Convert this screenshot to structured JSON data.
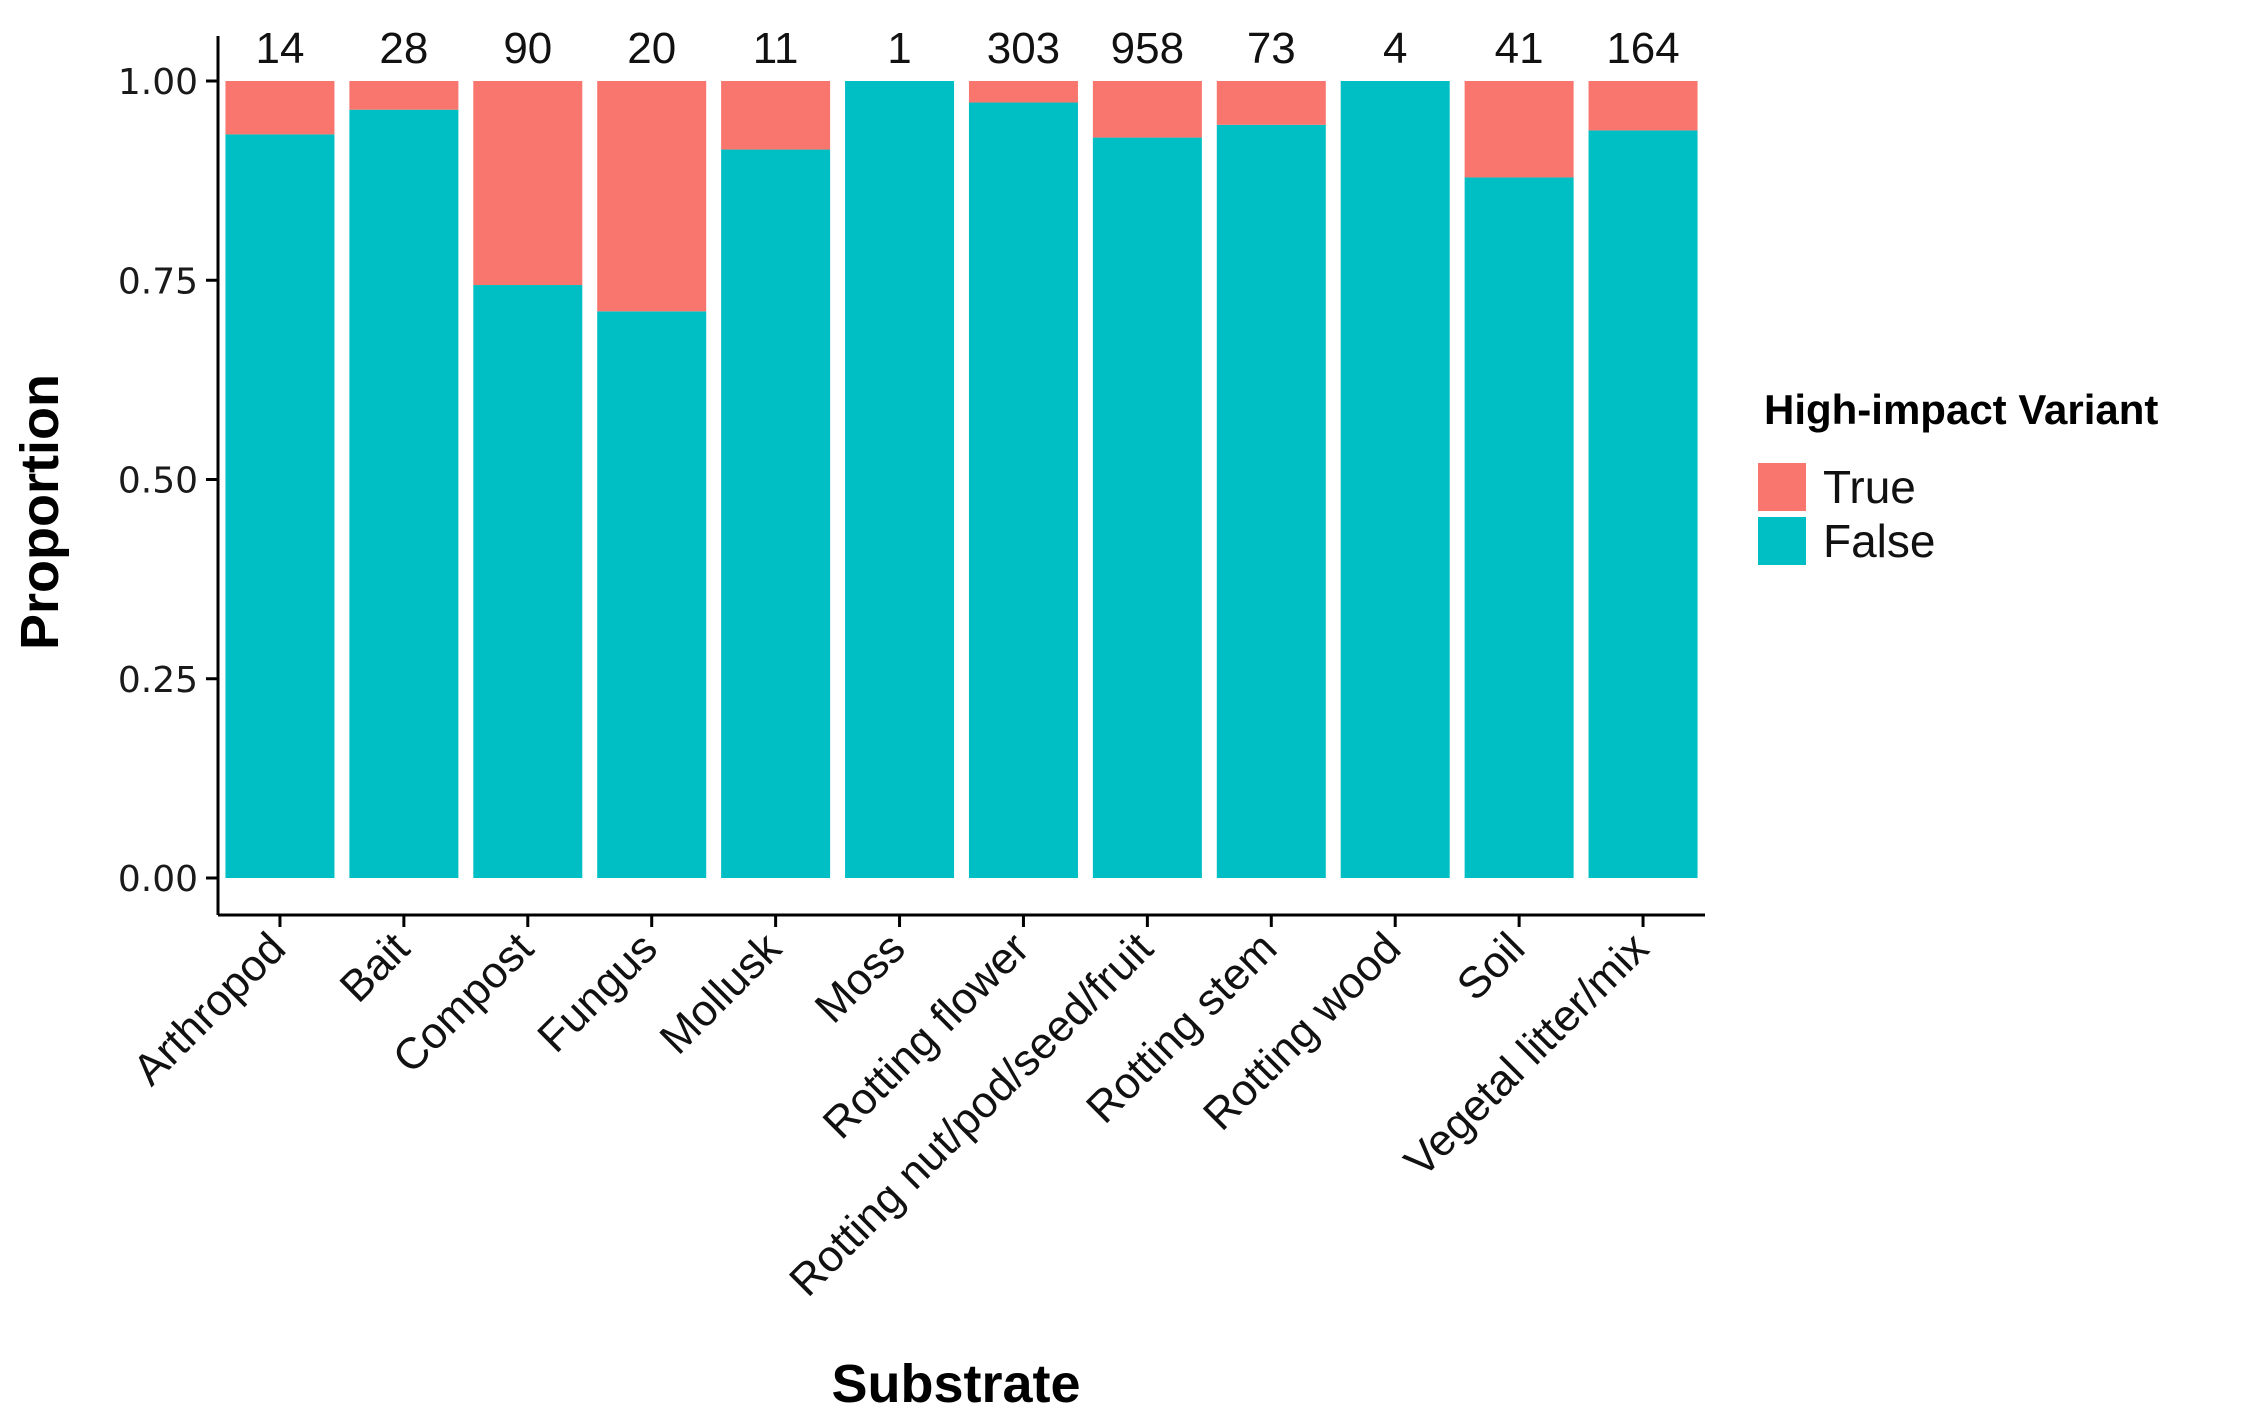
{
  "chart_data": {
    "type": "bar",
    "stacked": true,
    "title": "",
    "xlabel": "Substrate",
    "ylabel": "Proportion",
    "ylim": [
      0,
      1
    ],
    "yticks": [
      "0.00",
      "0.25",
      "0.50",
      "0.75",
      "1.00"
    ],
    "ytick_values": [
      0,
      0.25,
      0.5,
      0.75,
      1.0
    ],
    "grid": false,
    "legend_position": "right",
    "legend_title": "High-impact Variant",
    "categories": [
      "Arthropod",
      "Bait",
      "Compost",
      "Fungus",
      "Mollusk",
      "Moss",
      "Rotting flower",
      "Rotting nut/pod/seed/fruit",
      "Rotting stem",
      "Rotting wood",
      "Soil",
      "Vegetal litter/mix"
    ],
    "counts": [
      "14",
      "28",
      "90",
      "20",
      "11",
      "1",
      "303",
      "958",
      "73",
      "4",
      "41",
      "164"
    ],
    "series": [
      {
        "name": "True",
        "color": "#F8766D",
        "values": [
          0.067,
          0.036,
          0.256,
          0.289,
          0.086,
          0.0,
          0.027,
          0.071,
          0.055,
          0.0,
          0.121,
          0.062
        ]
      },
      {
        "name": "False",
        "color": "#00BFC4",
        "values": [
          0.933,
          0.964,
          0.744,
          0.711,
          0.914,
          1.0,
          0.973,
          0.929,
          0.945,
          1.0,
          0.879,
          0.938
        ]
      }
    ]
  }
}
